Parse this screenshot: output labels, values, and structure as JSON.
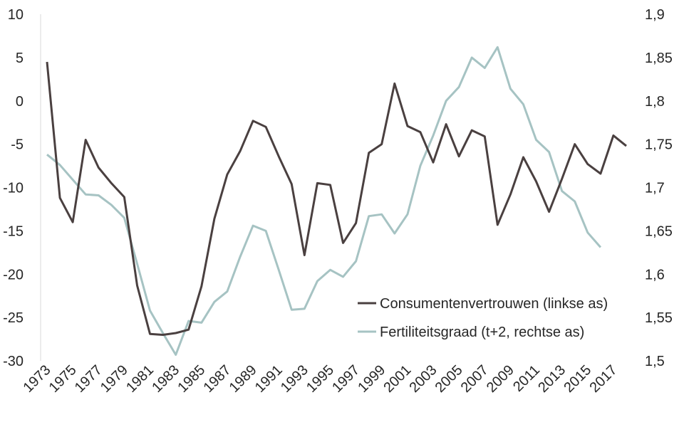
{
  "chart_data": {
    "type": "line",
    "title": "",
    "x": [
      1973,
      1974,
      1975,
      1976,
      1977,
      1978,
      1979,
      1980,
      1981,
      1982,
      1983,
      1984,
      1985,
      1986,
      1987,
      1988,
      1989,
      1990,
      1991,
      1992,
      1993,
      1994,
      1995,
      1996,
      1997,
      1998,
      1999,
      2000,
      2001,
      2002,
      2003,
      2004,
      2005,
      2006,
      2007,
      2008,
      2009,
      2010,
      2011,
      2012,
      2013,
      2014,
      2015,
      2016,
      2017,
      2018
    ],
    "x_tick_labels": [
      "1973",
      "1975",
      "1977",
      "1979",
      "1981",
      "1983",
      "1985",
      "1987",
      "1989",
      "1991",
      "1993",
      "1995",
      "1997",
      "1999",
      "2001",
      "2003",
      "2005",
      "2007",
      "2009",
      "2011",
      "2013",
      "2015",
      "2017"
    ],
    "y_left": {
      "range": [
        -30,
        10
      ],
      "ticks": [
        "-30",
        "-25",
        "-20",
        "-15",
        "-10",
        "-5",
        "0",
        "5",
        "10"
      ]
    },
    "y_right": {
      "range": [
        1.5,
        1.9
      ],
      "ticks": [
        "1,5",
        "1,55",
        "1,6",
        "1,65",
        "1,7",
        "1,75",
        "1,8",
        "1,85",
        "1,9"
      ]
    },
    "grid": false,
    "legend_position": "lower-right",
    "series": [
      {
        "name": "Consumentenvertrouwen (linkse as)",
        "axis": "left",
        "color": "#4a4040",
        "values": [
          4.5,
          -11.2,
          -14,
          -4.5,
          -7.7,
          -9.5,
          -11.1,
          -21.3,
          -26.9,
          -27,
          -26.8,
          -26.4,
          -21.4,
          -13.6,
          -8.5,
          -5.8,
          -2.3,
          -3,
          -6.4,
          -9.6,
          -17.8,
          -9.5,
          -9.7,
          -16.4,
          -14.1,
          -6,
          -5,
          2,
          -2.9,
          -3.6,
          -7.1,
          -2.7,
          -6.4,
          -3.4,
          -4.1,
          -14.3,
          -10.8,
          -6.5,
          -9.3,
          -12.8,
          -9,
          -5,
          -7.3,
          -8.4,
          -4,
          -5.2
        ]
      },
      {
        "name": "Fertiliteitsgraad (t+2, rechtse as)",
        "axis": "right",
        "color": "#a6c3c3",
        "values": [
          1.738,
          1.726,
          1.709,
          1.692,
          1.691,
          1.68,
          1.665,
          1.612,
          1.558,
          1.532,
          1.507,
          1.546,
          1.544,
          1.568,
          1.58,
          1.62,
          1.656,
          1.65,
          1.605,
          1.559,
          1.56,
          1.592,
          1.605,
          1.597,
          1.615,
          1.667,
          1.669,
          1.647,
          1.669,
          1.725,
          1.76,
          1.8,
          1.816,
          1.85,
          1.838,
          1.862,
          1.814,
          1.796,
          1.755,
          1.741,
          1.696,
          1.684,
          1.648,
          1.631,
          null,
          null
        ]
      }
    ]
  }
}
